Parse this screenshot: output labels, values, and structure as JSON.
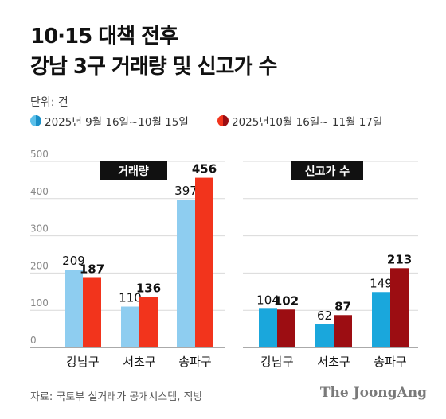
{
  "title_line1": "10·15 대책 전후",
  "title_line2": "강남 3구 거래량 및 신고가 수",
  "unit": "단위: 건",
  "legend": [
    "2025년 9월 16일~10월 15일",
    "2025년10월 16일~ 11월 17일"
  ],
  "source": "자료: 국토부 실거래가 공개시스템, 직방",
  "logo": "The JoongAng",
  "colors": {
    "volume_before": "#8ecdf0",
    "volume_after": "#f2341c",
    "high_before": "#1aa7dc",
    "high_after": "#9c0d12"
  },
  "chart_data": [
    {
      "type": "bar",
      "title": "거래량",
      "categories": [
        "강남구",
        "서초구",
        "송파구"
      ],
      "series": [
        {
          "name": "2025년 9월 16일~10월 15일",
          "values": [
            209,
            110,
            397
          ]
        },
        {
          "name": "2025년10월 16일~ 11월 17일",
          "values": [
            187,
            136,
            456
          ]
        }
      ],
      "ylim": [
        0,
        500
      ],
      "yticks": [
        0,
        100,
        200,
        300,
        400,
        500
      ]
    },
    {
      "type": "bar",
      "title": "신고가 수",
      "categories": [
        "강남구",
        "서초구",
        "송파구"
      ],
      "series": [
        {
          "name": "2025년 9월 16일~10월 15일",
          "values": [
            104,
            62,
            149
          ]
        },
        {
          "name": "2025년10월 16일~ 11월 17일",
          "values": [
            102,
            87,
            213
          ]
        }
      ],
      "ylim": [
        0,
        500
      ]
    }
  ]
}
